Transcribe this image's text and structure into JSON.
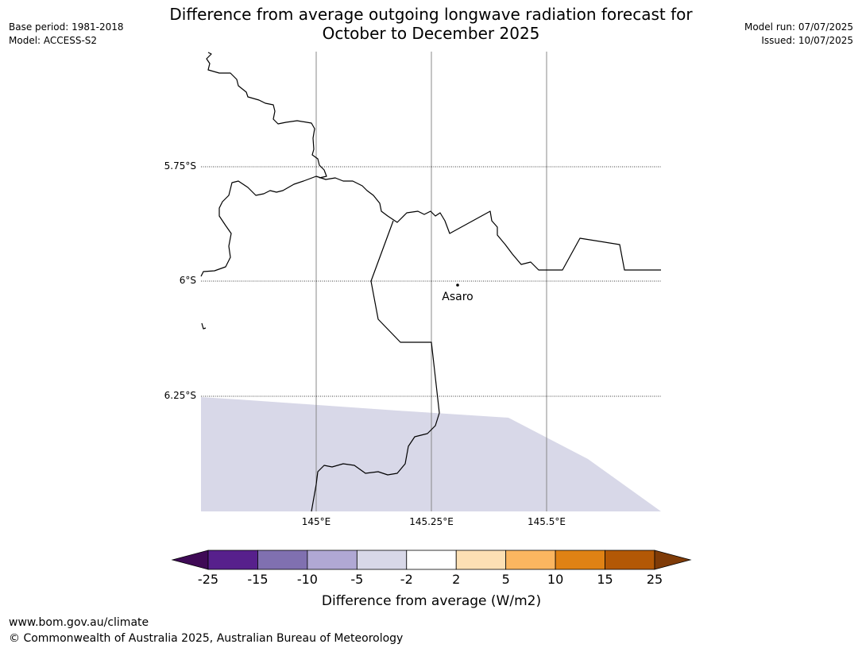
{
  "title_line1": "Difference from average outgoing longwave radiation forecast for",
  "title_line2": "October to December 2025",
  "meta_left": {
    "base_period": "Base period: 1981-2018",
    "model": "Model: ACCESS-S2"
  },
  "meta_right": {
    "model_run": "Model run: 07/07/2025",
    "issued": "Issued: 10/07/2025"
  },
  "map": {
    "lat_labels": [
      "5.75°S",
      "6°S",
      "6.25°S"
    ],
    "lon_labels": [
      "145°E",
      "145.25°E",
      "145.5°E"
    ],
    "place_label": "Asaro",
    "shaded_category": "-5 to -2",
    "shaded_color": "#d8d8e8",
    "lat_values": [
      -5.75,
      -6.0,
      -6.25
    ],
    "lon_values": [
      145.0,
      145.25,
      145.5
    ]
  },
  "colorbar": {
    "title": "Difference from average (W/m2)",
    "ticks": [
      "-25",
      "-15",
      "-10",
      "-5",
      "-2",
      "2",
      "5",
      "10",
      "15",
      "25"
    ],
    "colors": [
      "#57208c",
      "#8070b0",
      "#b0a8d4",
      "#d8d8e8",
      "#ffffff",
      "#fde0b4",
      "#fbb660",
      "#e08214",
      "#b35806"
    ],
    "under_color": "#3f0a56",
    "over_color": "#7f3b08"
  },
  "footer": {
    "url": "www.bom.gov.au/climate",
    "copyright": "© Commonwealth of Australia 2025, Australian Bureau of Meteorology"
  }
}
